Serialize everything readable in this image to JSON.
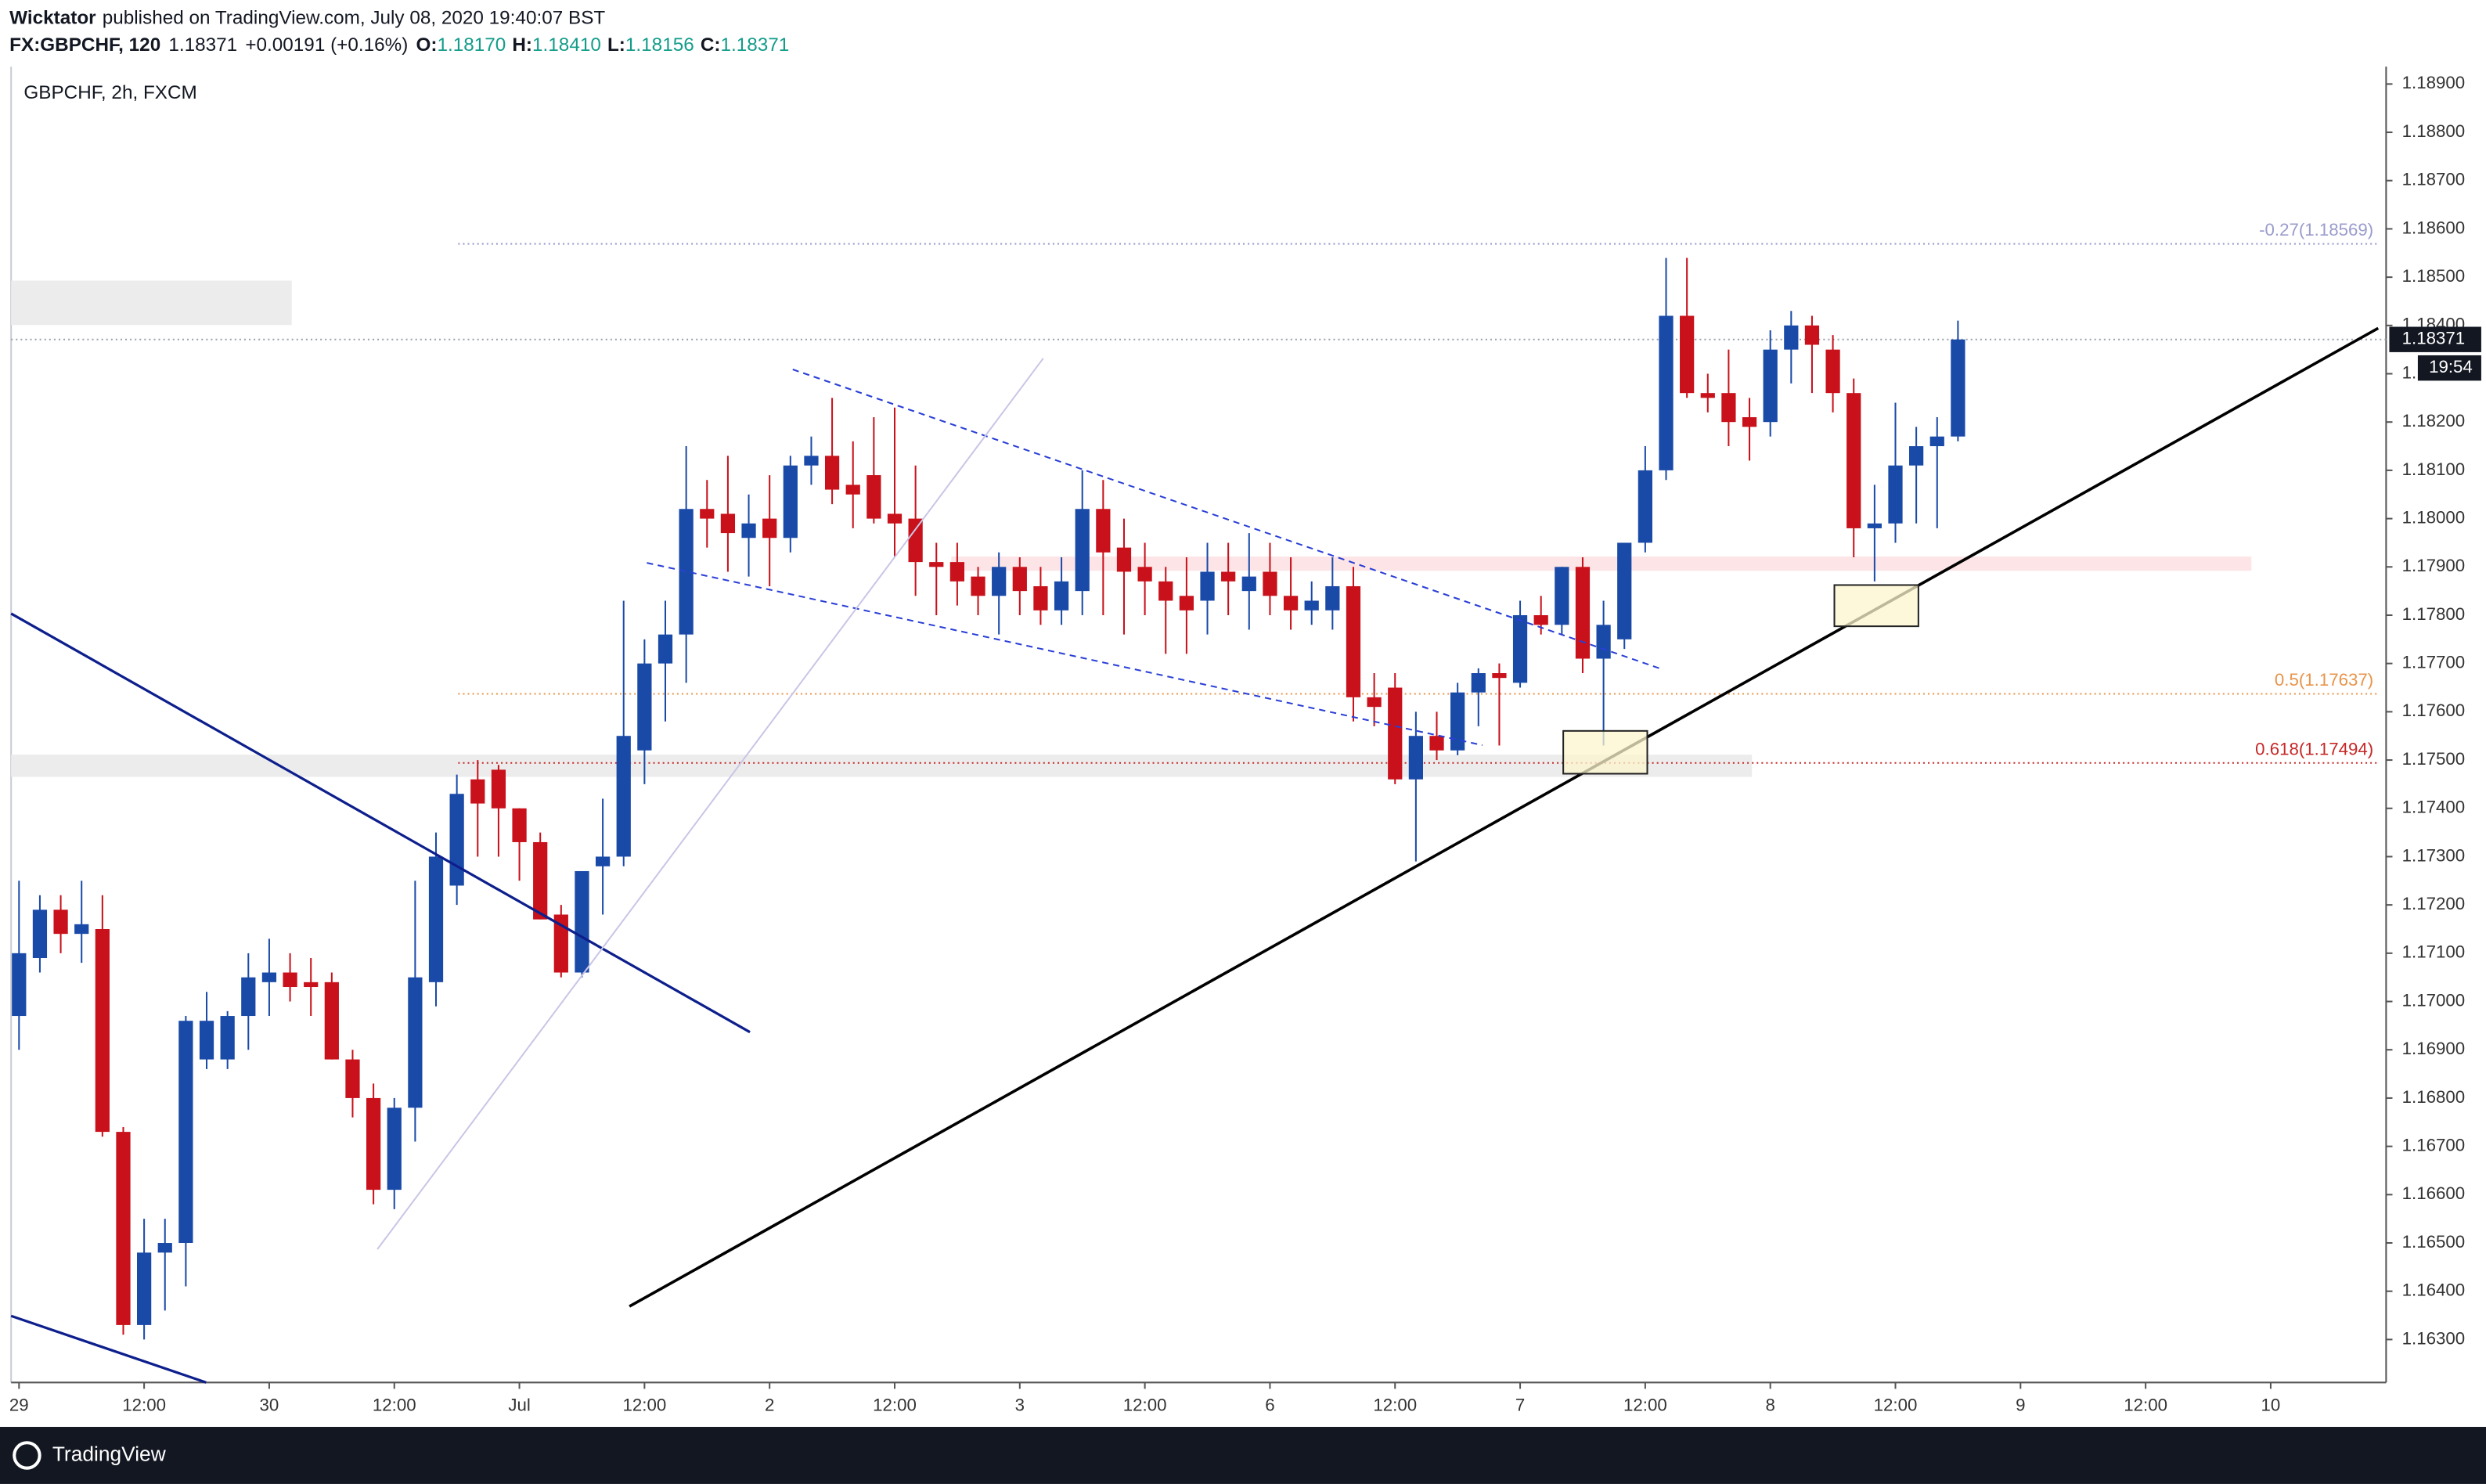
{
  "header": {
    "author": "Wicktator",
    "published": "published on TradingView.com, July 08, 2020 19:40:07 BST",
    "symbol": "FX:GBPCHF, 120",
    "last": "1.18371",
    "change": "+0.00191 (+0.16%)",
    "open_label": "O:",
    "open": "1.18170",
    "high_label": "H:",
    "high": "1.18410",
    "low_label": "L:",
    "low": "1.18156",
    "close_label": "C:",
    "close": "1.18371"
  },
  "footer": {
    "brand": "TradingView"
  },
  "chart_data": {
    "type": "candlestick",
    "title": "GBPCHF, 2h, FXCM",
    "up_color": "#1a4aa8",
    "down_color": "#c8111a",
    "categories": [
      "29",
      null,
      null,
      null,
      null,
      null,
      "12:00",
      null,
      null,
      null,
      null,
      null,
      "30",
      null,
      null,
      null,
      null,
      null,
      "12:00",
      null,
      null,
      null,
      null,
      null,
      "Jul",
      null,
      null,
      null,
      null,
      null,
      "12:00",
      null,
      null,
      null,
      null,
      null,
      "2",
      null,
      null,
      null,
      null,
      null,
      "12:00",
      null,
      null,
      null,
      null,
      null,
      "3",
      null,
      null,
      null,
      null,
      null,
      "12:00",
      null,
      null,
      null,
      null,
      null,
      "6",
      null,
      null,
      null,
      null,
      null,
      "12:00",
      null,
      null,
      null,
      null,
      null,
      "7",
      null,
      null,
      null,
      null,
      null,
      "12:00",
      null,
      null,
      null,
      null,
      null,
      "8",
      null,
      null,
      null,
      null,
      null,
      "12:00",
      null,
      null,
      null,
      null,
      null,
      "9",
      null,
      null,
      null,
      null,
      null,
      "12:00",
      null,
      null,
      null,
      null,
      null,
      "10"
    ],
    "open": [
      1.1697,
      1.1709,
      1.1719,
      1.1714,
      1.1715,
      1.1673,
      1.1633,
      1.1648,
      1.165,
      1.1688,
      1.1688,
      1.1697,
      1.1704,
      1.1706,
      1.1704,
      1.1704,
      1.1688,
      1.168,
      1.1661,
      1.1678,
      1.1704,
      1.1724,
      1.1746,
      1.1748,
      1.174,
      1.1733,
      1.1718,
      1.1706,
      1.1728,
      1.173,
      1.1752,
      1.177,
      1.1776,
      1.1802,
      1.1801,
      1.1796,
      1.18,
      1.1796,
      1.1811,
      1.1813,
      1.1807,
      1.1809,
      1.1801,
      1.18,
      1.1791,
      1.1791,
      1.1788,
      1.1784,
      1.179,
      1.1786,
      1.1781,
      1.1785,
      1.1802,
      1.1794,
      1.179,
      1.1787,
      1.1784,
      1.1783,
      1.1789,
      1.1785,
      1.1789,
      1.1784,
      1.1781,
      1.1781,
      1.1786,
      1.1763,
      1.1765,
      1.1746,
      1.1755,
      1.1752,
      1.1764,
      1.1768,
      1.1766,
      1.178,
      1.1778,
      1.179,
      1.1771,
      1.1775,
      1.1795,
      1.181,
      1.1842,
      1.1826,
      1.1826,
      1.1821,
      1.182,
      1.1835,
      1.184,
      1.1835,
      1.1826,
      1.1798,
      1.1799,
      1.1811,
      1.1815,
      1.1817,
      null,
      null,
      null,
      null,
      null,
      null,
      null,
      null,
      null,
      null,
      null,
      null,
      null,
      null,
      null
    ],
    "high": [
      1.1725,
      1.1722,
      1.1722,
      1.1725,
      1.1722,
      1.1674,
      1.1655,
      1.1655,
      1.1697,
      1.1702,
      1.1698,
      1.171,
      1.1713,
      1.171,
      1.1709,
      1.1706,
      1.169,
      1.1683,
      1.168,
      1.1725,
      1.1735,
      1.1747,
      1.175,
      1.1749,
      1.174,
      1.1735,
      1.172,
      1.1727,
      1.1742,
      1.1783,
      1.1775,
      1.1783,
      1.1815,
      1.1808,
      1.1813,
      1.1805,
      1.1809,
      1.1813,
      1.1817,
      1.1825,
      1.1816,
      1.1821,
      1.1823,
      1.1811,
      1.1795,
      1.1795,
      1.179,
      1.1793,
      1.1792,
      1.179,
      1.1792,
      1.181,
      1.1808,
      1.18,
      1.1795,
      1.179,
      1.1792,
      1.1795,
      1.1795,
      1.1797,
      1.1795,
      1.1792,
      1.1787,
      1.1792,
      1.179,
      1.1768,
      1.1768,
      1.176,
      1.176,
      1.1766,
      1.1769,
      1.177,
      1.1783,
      1.1784,
      1.179,
      1.1792,
      1.1783,
      1.1795,
      1.1815,
      1.1854,
      1.1854,
      1.183,
      1.1835,
      1.1825,
      1.1839,
      1.1843,
      1.1842,
      1.1838,
      1.1829,
      1.1807,
      1.1824,
      1.1819,
      1.1821,
      1.1841,
      null,
      null,
      null,
      null,
      null,
      null,
      null,
      null,
      null,
      null,
      null,
      null,
      null,
      null,
      null
    ],
    "low": [
      1.169,
      1.1706,
      1.171,
      1.1708,
      1.1672,
      1.1631,
      1.163,
      1.1636,
      1.1641,
      1.1686,
      1.1686,
      1.169,
      1.1697,
      1.17,
      1.1697,
      1.1688,
      1.1676,
      1.1658,
      1.1657,
      1.1671,
      1.1699,
      1.172,
      1.173,
      1.173,
      1.1725,
      1.1717,
      1.1705,
      1.1705,
      1.1718,
      1.1728,
      1.1745,
      1.1758,
      1.1766,
      1.1794,
      1.1789,
      1.1788,
      1.1786,
      1.1793,
      1.1807,
      1.1803,
      1.1798,
      1.1799,
      1.1792,
      1.1784,
      1.178,
      1.1782,
      1.178,
      1.1776,
      1.178,
      1.1778,
      1.1778,
      1.178,
      1.178,
      1.1776,
      1.178,
      1.1772,
      1.1772,
      1.1776,
      1.178,
      1.1777,
      1.178,
      1.1777,
      1.1778,
      1.1777,
      1.1758,
      1.1757,
      1.1745,
      1.1729,
      1.175,
      1.1751,
      1.1757,
      1.1753,
      1.1765,
      1.1776,
      1.1776,
      1.1768,
      1.1753,
      1.1773,
      1.1793,
      1.1808,
      1.1825,
      1.1822,
      1.1815,
      1.1812,
      1.1817,
      1.1828,
      1.1826,
      1.1822,
      1.1792,
      1.1787,
      1.1795,
      1.1799,
      1.1798,
      1.1816,
      null,
      null,
      null,
      null,
      null,
      null,
      null,
      null,
      null,
      null,
      null,
      null,
      null,
      null,
      null
    ],
    "close": [
      1.171,
      1.1719,
      1.1714,
      1.1716,
      1.1673,
      1.1633,
      1.1648,
      1.165,
      1.1696,
      1.1696,
      1.1697,
      1.1705,
      1.1706,
      1.1703,
      1.1703,
      1.1688,
      1.168,
      1.1661,
      1.1678,
      1.1705,
      1.173,
      1.1743,
      1.1741,
      1.174,
      1.1733,
      1.1717,
      1.1706,
      1.1727,
      1.173,
      1.1755,
      1.177,
      1.1776,
      1.1802,
      1.18,
      1.1797,
      1.1799,
      1.1796,
      1.1811,
      1.1813,
      1.1806,
      1.1805,
      1.18,
      1.1799,
      1.1791,
      1.179,
      1.1787,
      1.1784,
      1.179,
      1.1785,
      1.1781,
      1.1787,
      1.1802,
      1.1793,
      1.1789,
      1.1787,
      1.1783,
      1.1781,
      1.1789,
      1.1787,
      1.1788,
      1.1784,
      1.1781,
      1.1783,
      1.1786,
      1.1763,
      1.1761,
      1.1746,
      1.1755,
      1.1752,
      1.1764,
      1.1768,
      1.1767,
      1.178,
      1.1778,
      1.179,
      1.1771,
      1.1778,
      1.1795,
      1.181,
      1.1842,
      1.1826,
      1.1825,
      1.182,
      1.1819,
      1.1835,
      1.184,
      1.1836,
      1.1826,
      1.1798,
      1.1799,
      1.1811,
      1.1815,
      1.1817,
      1.18371,
      null,
      null,
      null,
      null,
      null,
      null,
      null,
      null,
      null,
      null,
      null,
      null,
      null,
      null,
      null
    ],
    "ylim": [
      1.16211,
      1.18936
    ],
    "yticks": [
      {
        "value": 1.189,
        "label": "1.18900"
      },
      {
        "value": 1.188,
        "label": "1.18800"
      },
      {
        "value": 1.187,
        "label": "1.18700"
      },
      {
        "value": 1.186,
        "label": "1.18600"
      },
      {
        "value": 1.185,
        "label": "1.18500"
      },
      {
        "value": 1.184,
        "label": "1.18400"
      },
      {
        "value": 1.183,
        "label": "1.18300"
      },
      {
        "value": 1.182,
        "label": "1.18200"
      },
      {
        "value": 1.181,
        "label": "1.18100"
      },
      {
        "value": 1.18,
        "label": "1.18000"
      },
      {
        "value": 1.179,
        "label": "1.17900"
      },
      {
        "value": 1.178,
        "label": "1.17800"
      },
      {
        "value": 1.177,
        "label": "1.17700"
      },
      {
        "value": 1.176,
        "label": "1.17600"
      },
      {
        "value": 1.175,
        "label": "1.17500"
      },
      {
        "value": 1.174,
        "label": "1.17400"
      },
      {
        "value": 1.173,
        "label": "1.17300"
      },
      {
        "value": 1.172,
        "label": "1.17200"
      },
      {
        "value": 1.171,
        "label": "1.17100"
      },
      {
        "value": 1.17,
        "label": "1.17000"
      },
      {
        "value": 1.169,
        "label": "1.16900"
      },
      {
        "value": 1.168,
        "label": "1.16800"
      },
      {
        "value": 1.167,
        "label": "1.16700"
      },
      {
        "value": 1.166,
        "label": "1.16600"
      },
      {
        "value": 1.165,
        "label": "1.16500"
      },
      {
        "value": 1.164,
        "label": "1.16400"
      },
      {
        "value": 1.163,
        "label": "1.16300"
      }
    ],
    "last_price": 1.18371,
    "countdown": "19:54",
    "levels": [
      {
        "value": 1.18569,
        "label": "-0.27(1.18569)",
        "color": "#9a9ccc"
      },
      {
        "value": 1.17637,
        "label": "0.5(1.17637)",
        "color": "#e8944a"
      },
      {
        "value": 1.17494,
        "label": "0.618(1.17494)",
        "color": "#c62828"
      }
    ]
  }
}
